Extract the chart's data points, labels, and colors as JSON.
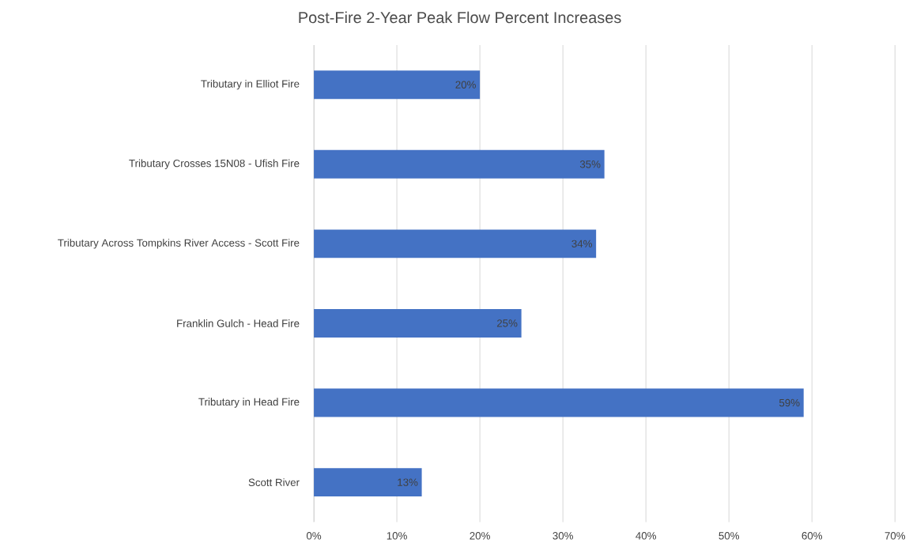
{
  "chart_data": {
    "type": "bar",
    "orientation": "horizontal",
    "title": "Post-Fire 2-Year Peak Flow Percent Increases",
    "categories": [
      "Tributary in Elliot Fire",
      "Tributary Crosses 15N08 - Ufish Fire",
      "Tributary Across Tompkins River Access - Scott Fire",
      "Franklin Gulch - Head Fire",
      "Tributary in Head Fire",
      "Scott River"
    ],
    "values": [
      20,
      35,
      34,
      25,
      59,
      13
    ],
    "value_labels": [
      "20%",
      "35%",
      "34%",
      "25%",
      "59%",
      "13%"
    ],
    "color": "#4472c4",
    "xlim": [
      0,
      70
    ],
    "xticks": [
      {
        "value": 0,
        "label": "0%"
      },
      {
        "value": 10,
        "label": "10%"
      },
      {
        "value": 20,
        "label": "20%"
      },
      {
        "value": 30,
        "label": "30%"
      },
      {
        "value": 40,
        "label": "40%"
      },
      {
        "value": 50,
        "label": "50%"
      },
      {
        "value": 60,
        "label": "60%"
      },
      {
        "value": 70,
        "label": "70%"
      }
    ],
    "grid": "x"
  }
}
